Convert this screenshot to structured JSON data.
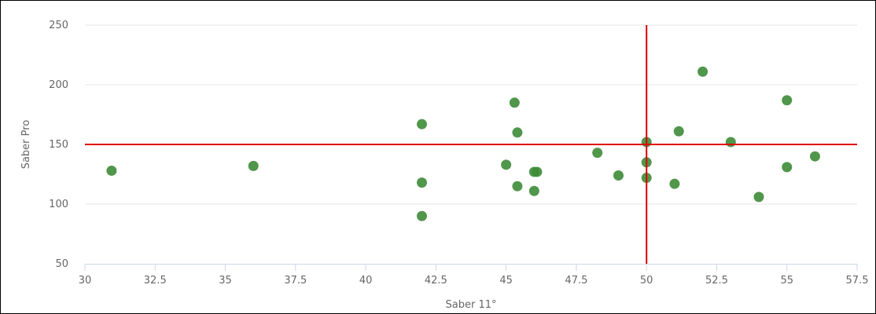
{
  "chart_data": {
    "type": "scatter",
    "title": "",
    "xlabel": "Saber 11°",
    "ylabel": "Saber Pro",
    "xlim": [
      30,
      57.5
    ],
    "ylim": [
      50,
      250
    ],
    "x_ticks": [
      "30",
      "32.5",
      "35",
      "37.5",
      "40",
      "42.5",
      "45",
      "47.5",
      "50",
      "52.5",
      "55",
      "57.5"
    ],
    "y_ticks": [
      "50",
      "100",
      "150",
      "200",
      "250"
    ],
    "grid": "horizontal",
    "legend": "none",
    "marker_color": "#3d8b37",
    "reference_line_color": "#e00000",
    "reference_lines": {
      "x": 50,
      "y": 150
    },
    "points": [
      {
        "x": 30.95,
        "y": 128
      },
      {
        "x": 36.0,
        "y": 132
      },
      {
        "x": 42.0,
        "y": 167
      },
      {
        "x": 42.0,
        "y": 118
      },
      {
        "x": 42.0,
        "y": 90
      },
      {
        "x": 45.0,
        "y": 133
      },
      {
        "x": 45.3,
        "y": 185
      },
      {
        "x": 45.4,
        "y": 160
      },
      {
        "x": 45.4,
        "y": 115
      },
      {
        "x": 46.0,
        "y": 127
      },
      {
        "x": 46.1,
        "y": 127
      },
      {
        "x": 46.0,
        "y": 111
      },
      {
        "x": 48.25,
        "y": 143
      },
      {
        "x": 49.0,
        "y": 124
      },
      {
        "x": 50.0,
        "y": 152
      },
      {
        "x": 50.0,
        "y": 135
      },
      {
        "x": 50.0,
        "y": 122
      },
      {
        "x": 51.0,
        "y": 117
      },
      {
        "x": 51.15,
        "y": 161
      },
      {
        "x": 52.0,
        "y": 211
      },
      {
        "x": 53.0,
        "y": 152
      },
      {
        "x": 54.0,
        "y": 106
      },
      {
        "x": 55.0,
        "y": 187
      },
      {
        "x": 55.0,
        "y": 131
      },
      {
        "x": 56.0,
        "y": 140
      }
    ]
  }
}
